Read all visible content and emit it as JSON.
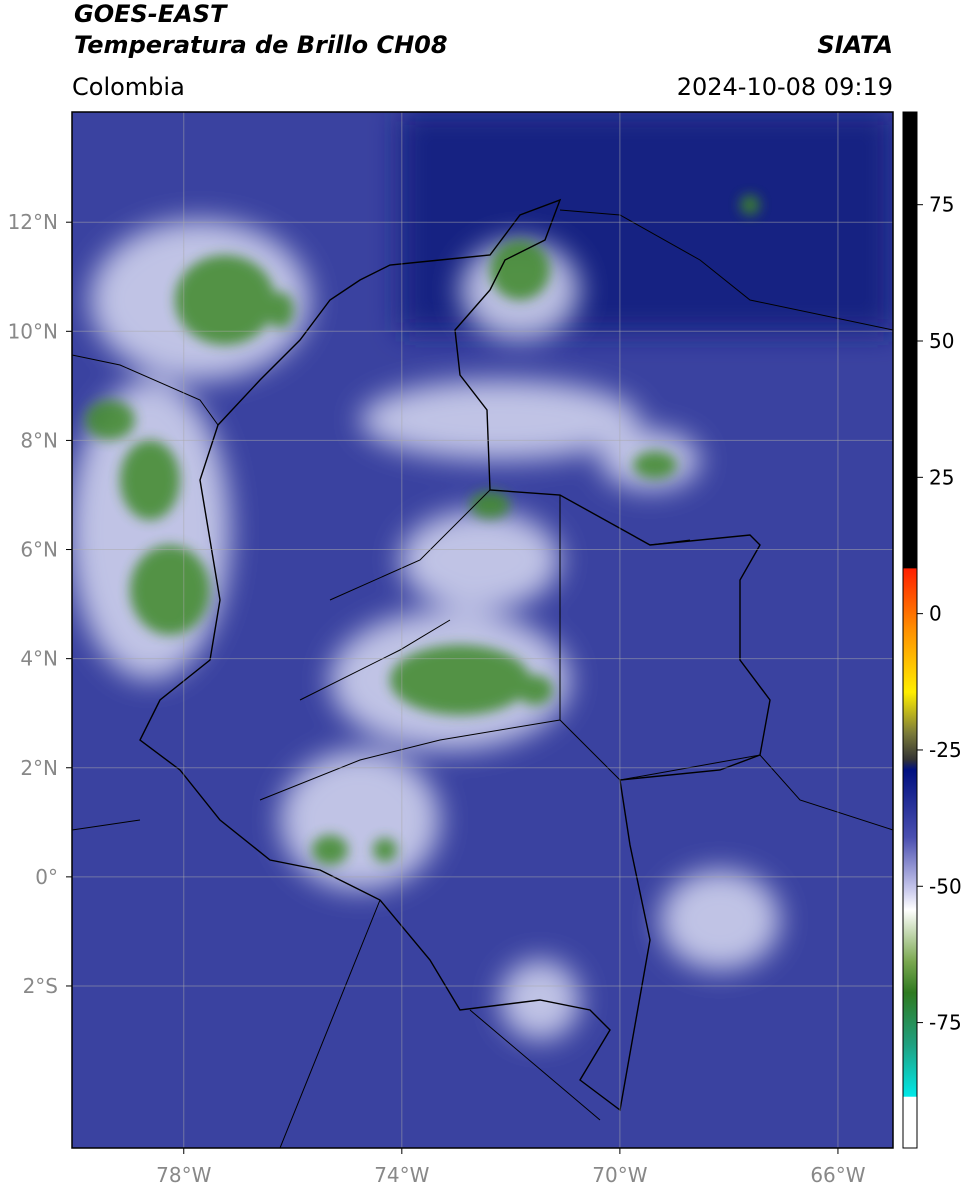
{
  "header": {
    "title_line1": "GOES-EAST",
    "title_line2": "Temperatura de Brillo CH08",
    "source": "SIATA",
    "region": "Colombia",
    "datetime": "2024-10-08 09:19"
  },
  "map": {
    "xlim": [
      -80.05,
      -64.99
    ],
    "ylim": [
      -4.97,
      14.02
    ],
    "xticks": [
      {
        "value": -78,
        "label": "78°W"
      },
      {
        "value": -74,
        "label": "74°W"
      },
      {
        "value": -70,
        "label": "70°W"
      },
      {
        "value": -66,
        "label": "66°W"
      }
    ],
    "yticks": [
      {
        "value": 12,
        "label": "12°N"
      },
      {
        "value": 10,
        "label": "10°N"
      },
      {
        "value": 8,
        "label": "8°N"
      },
      {
        "value": 6,
        "label": "6°N"
      },
      {
        "value": 4,
        "label": "4°N"
      },
      {
        "value": 2,
        "label": "2°N"
      },
      {
        "value": 0,
        "label": "0°"
      },
      {
        "value": -2,
        "label": "2°S"
      }
    ],
    "grid": true
  },
  "colorbar": {
    "lim": [
      -98,
      92
    ],
    "ticks": [
      75,
      50,
      25,
      0,
      -25,
      -50,
      -75
    ]
  }
}
